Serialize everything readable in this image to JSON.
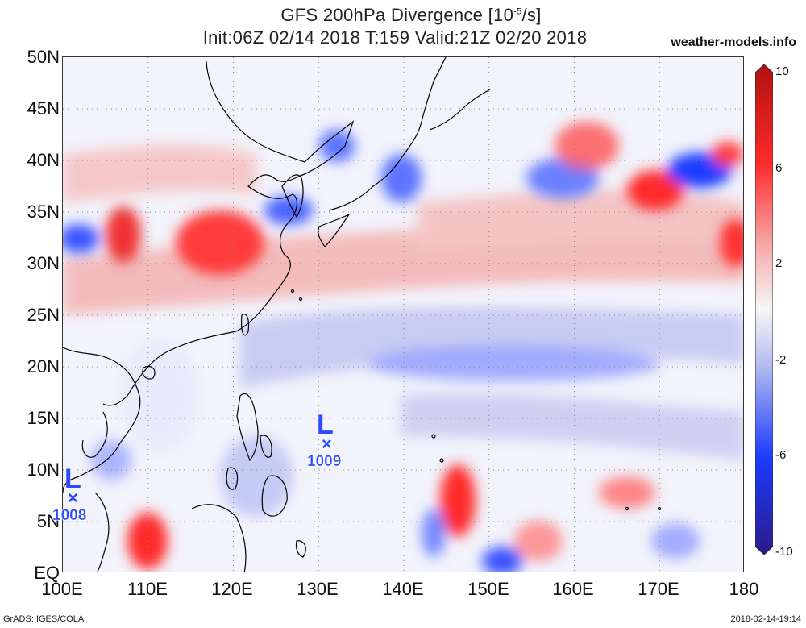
{
  "header": {
    "title_line1": "GFS 200hPa Divergence [10",
    "title_exp": "-5",
    "title_unit_tail": "/s]",
    "title_line2": "Init:06Z 02/14 2018 T:159 Valid:21Z 02/20 2018",
    "site": "weather-models.info"
  },
  "axes": {
    "lat_labels": [
      "50N",
      "45N",
      "40N",
      "35N",
      "30N",
      "25N",
      "20N",
      "15N",
      "10N",
      "5N",
      "EQ"
    ],
    "lon_labels": [
      "100E",
      "110E",
      "120E",
      "130E",
      "140E",
      "150E",
      "160E",
      "170E",
      "180"
    ]
  },
  "colorbar": {
    "ticks": [
      "10",
      "6",
      "2",
      "-2",
      "-6",
      "-10"
    ],
    "colors": {
      "max": "#b01010",
      "pos": "#ff2a2a",
      "weak_pos": "#f7b0b0",
      "neutral": "#f6f6f6",
      "weak_neg": "#b0b8f0",
      "neg": "#1c3cff",
      "min": "#2a1a8a"
    }
  },
  "pressure_lows": [
    {
      "letter": "L",
      "marker": "×",
      "value": "1009"
    },
    {
      "letter": "L",
      "marker": "×",
      "value": "1008"
    }
  ],
  "footer": {
    "left": "GrADS: IGES/COLA",
    "right": "2018-02-14-19:14"
  }
}
